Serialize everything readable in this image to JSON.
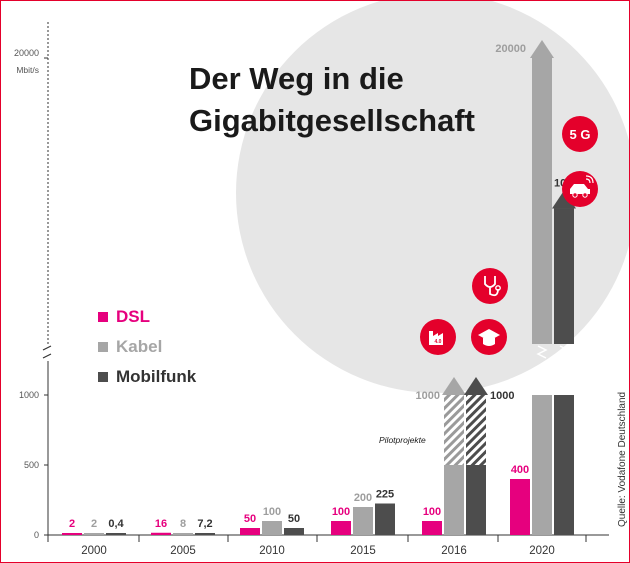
{
  "chart_data": {
    "type": "bar",
    "title_line1": "Der Weg in die",
    "title_line2": "Gigabitgesellschaft",
    "categories": [
      "2000",
      "2005",
      "2010",
      "2015",
      "2016",
      "2020"
    ],
    "series": [
      {
        "name": "DSL",
        "color": "#e6007e",
        "values": [
          2,
          16,
          50,
          100,
          100,
          400
        ],
        "labels": [
          "2",
          "16",
          "50",
          "100",
          "100",
          "400"
        ]
      },
      {
        "name": "Kabel",
        "color": "#a6a6a6",
        "values": [
          2,
          8,
          100,
          200,
          1000,
          20000
        ],
        "labels": [
          "2",
          "8",
          "100",
          "200",
          "1000",
          "20000"
        ]
      },
      {
        "name": "Mobilfunk",
        "color": "#4d4d4d",
        "values": [
          0.4,
          7.2,
          50,
          225,
          1000,
          10000
        ],
        "labels": [
          "0,4",
          "7,2",
          "50",
          "225",
          "1000",
          "10000"
        ]
      }
    ],
    "pilot_years": [
      "2016"
    ],
    "pilot_label": "Pilotprojekte",
    "y_ticks": [
      {
        "value": 0,
        "label": "0"
      },
      {
        "value": 500,
        "label": "500"
      },
      {
        "value": 1000,
        "label": "1000"
      },
      {
        "value": 20000,
        "label": "20000"
      }
    ],
    "y_unit": "Mbit/s",
    "y_scale": "broken",
    "source": "Quelle: Vodafone Deutschland",
    "badges": [
      {
        "name": "industry-4-0-icon",
        "text": "4.0"
      },
      {
        "name": "graduation-cap-icon",
        "text": ""
      },
      {
        "name": "stethoscope-icon",
        "text": ""
      },
      {
        "name": "5g-badge",
        "text": "5 G"
      },
      {
        "name": "connected-car-icon",
        "text": ""
      }
    ],
    "colors": {
      "accent": "#e4002b",
      "background_circle": "#e6e6e6"
    }
  }
}
